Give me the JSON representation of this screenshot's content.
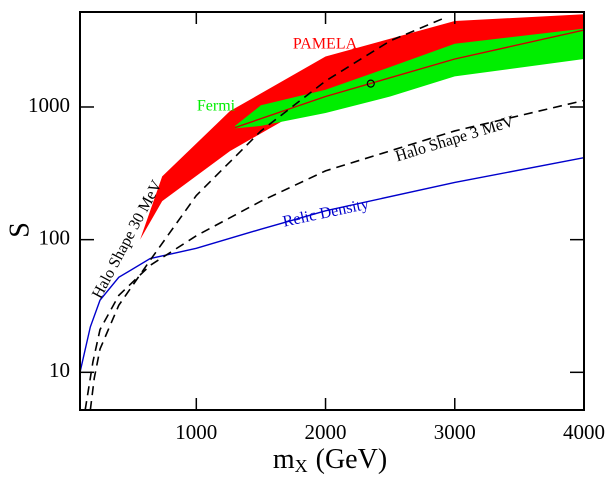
{
  "chart_data": {
    "type": "line",
    "xlabel": {
      "symbol": "m",
      "subscript": "X",
      "unit": "(GeV)"
    },
    "ylabel": "S",
    "xlim": [
      100,
      4000
    ],
    "ylim": [
      5.2,
      5200
    ],
    "log_y": true,
    "xticks": [
      1000,
      2000,
      3000,
      4000
    ],
    "yticks": [
      10,
      100,
      1000
    ],
    "series": [
      {
        "name": "PAMELA",
        "kind": "band",
        "color": "#ff0000",
        "x": [
          565,
          736,
          1260,
          2000,
          3000,
          4000
        ],
        "lower": [
          100,
          195,
          465,
          1200,
          2400,
          3150
        ],
        "upper": [
          100,
          300,
          930,
          2400,
          4450,
          5000
        ]
      },
      {
        "name": "Fermi",
        "kind": "band",
        "color": "#00ee00",
        "x": [
          1300,
          1500,
          2000,
          2500,
          3000,
          4000
        ],
        "lower": [
          690,
          720,
          900,
          1200,
          1700,
          2300
        ],
        "upper": [
          720,
          1030,
          1350,
          2000,
          3000,
          3900
        ]
      },
      {
        "kind": "line",
        "color": "#cc0000",
        "dashed": false,
        "x": [
          1300,
          2000,
          3000,
          4000
        ],
        "values": [
          700,
          1200,
          2300,
          3800
        ]
      },
      {
        "name": "Relic Density",
        "kind": "line",
        "color": "#0000cc",
        "dashed": false,
        "x": [
          100,
          180,
          255,
          400,
          643,
          1000,
          1500,
          2000,
          3000,
          4000
        ],
        "values": [
          10,
          22,
          35,
          52,
          72,
          86,
          120,
          165,
          270,
          415
        ]
      },
      {
        "name": "Halo Shape 3 MeV",
        "kind": "line",
        "color": "#000000",
        "dashed": true,
        "x": [
          140,
          200,
          255,
          400,
          643,
          1000,
          1500,
          2000,
          3000,
          4000
        ],
        "values": [
          5.2,
          12,
          21,
          38,
          64,
          107,
          195,
          330,
          660,
          1120
        ]
      },
      {
        "name": "Halo Shape 30 MeV",
        "kind": "line",
        "color": "#000000",
        "dashed": true,
        "x": [
          180,
          210,
          255,
          400,
          643,
          1000,
          1500,
          2000,
          2500,
          2900
        ],
        "values": [
          5.2,
          9,
          15,
          32,
          70,
          215,
          660,
          1570,
          3150,
          4600
        ]
      },
      {
        "kind": "point",
        "color": "#000000",
        "x": [
          2350
        ],
        "values": [
          1500
        ]
      }
    ]
  }
}
